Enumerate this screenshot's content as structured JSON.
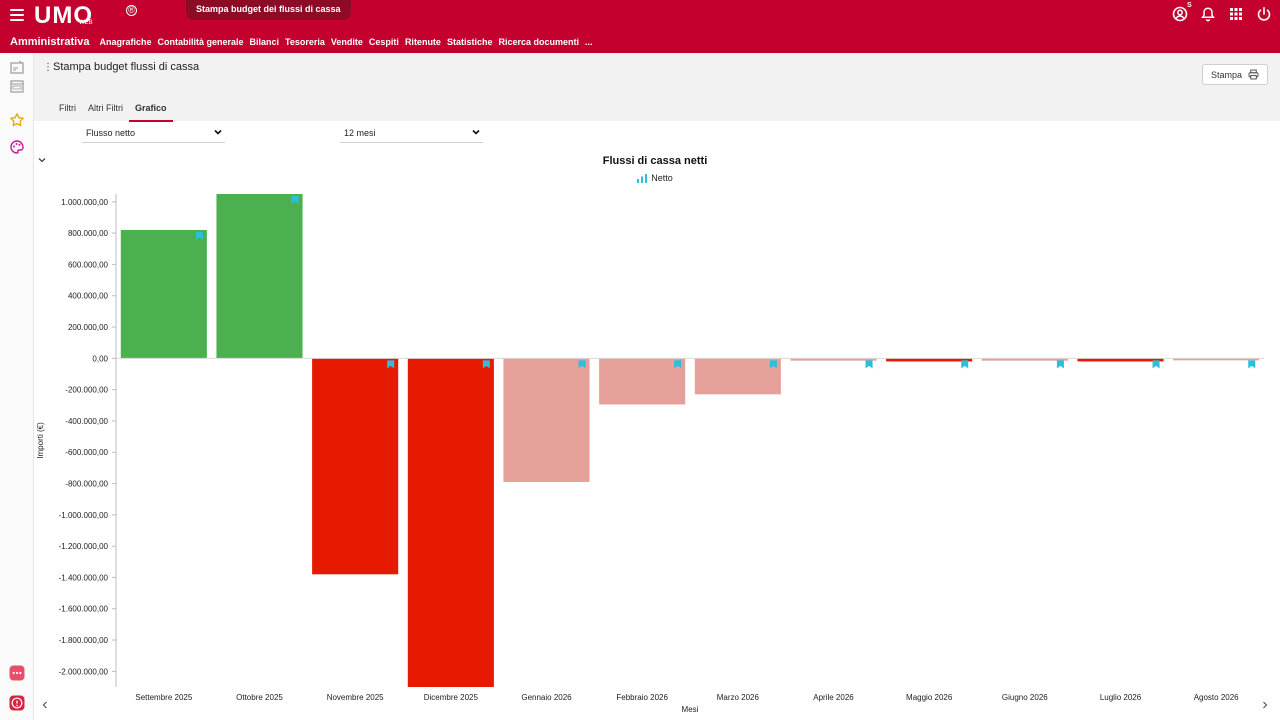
{
  "app": {
    "logo_text": "UMO",
    "logo_sub": "WEB",
    "logo_reg": "®",
    "active_tab": "Stampa budget dei flussi di cassa",
    "user_badge": "S"
  },
  "menu": {
    "module": "Amministrativa",
    "items": [
      "Anagrafiche",
      "Contabilità generale",
      "Bilanci",
      "Tesoreria",
      "Vendite",
      "Cespiti",
      "Ritenute",
      "Statistiche",
      "Ricerca documenti",
      "..."
    ]
  },
  "page": {
    "title": "Stampa budget flussi di cassa",
    "print_label": "Stampa",
    "tabs": [
      "Filtri",
      "Altri Filtri",
      "Grafico"
    ],
    "active_tab": "Grafico"
  },
  "filters": {
    "flow_type": "Flusso netto",
    "period": "12 mesi"
  },
  "colors": {
    "brand": "#c4002f",
    "positive": "#4caf50",
    "negative_strong": "#e61a00",
    "negative_light": "#e5a199",
    "marker": "#29c0dc"
  },
  "icons": [
    "menu-icon",
    "account-icon",
    "bell-icon",
    "apps-grid-icon",
    "power-icon",
    "printer-icon",
    "star-icon",
    "palette-icon",
    "chat-icon",
    "info-icon"
  ],
  "chart_data": {
    "type": "bar",
    "title": "Flussi di cassa netti",
    "xlabel": "Mesi",
    "ylabel": "Importi (€)",
    "legend": [
      "Netto"
    ],
    "ylim": [
      -2100000,
      1050000
    ],
    "yticks": [
      "1.000.000,00",
      "800.000,00",
      "600.000,00",
      "400.000,00",
      "200.000,00",
      "0,00",
      "-200.000,00",
      "-400.000,00",
      "-600.000,00",
      "-800.000,00",
      "-1.000.000,00",
      "-1.200.000,00",
      "-1.400.000,00",
      "-1.600.000,00",
      "-1.800.000,00",
      "-2.000.000,00"
    ],
    "ytick_values": [
      1000000,
      800000,
      600000,
      400000,
      200000,
      0,
      -200000,
      -400000,
      -600000,
      -800000,
      -1000000,
      -1200000,
      -1400000,
      -1600000,
      -1800000,
      -2000000
    ],
    "categories": [
      "Settembre 2025",
      "Ottobre 2025",
      "Novembre 2025",
      "Dicembre 2025",
      "Gennaio 2026",
      "Febbraio 2026",
      "Marzo 2026",
      "Aprile 2026",
      "Maggio 2026",
      "Giugno 2026",
      "Luglio 2026",
      "Agosto 2026"
    ],
    "series": [
      {
        "name": "Netto",
        "values": [
          820000,
          1050000,
          -1380000,
          -2100000,
          -790000,
          -295000,
          -230000,
          -15000,
          -20000,
          -15000,
          -20000,
          -10000
        ],
        "colors": [
          "#4caf50",
          "#4caf50",
          "#e61a00",
          "#e61a00",
          "#e5a199",
          "#e5a199",
          "#e5a199",
          "#e5a199",
          "#e61a00",
          "#e5a199",
          "#e61a00",
          "#e5a199"
        ]
      }
    ]
  }
}
